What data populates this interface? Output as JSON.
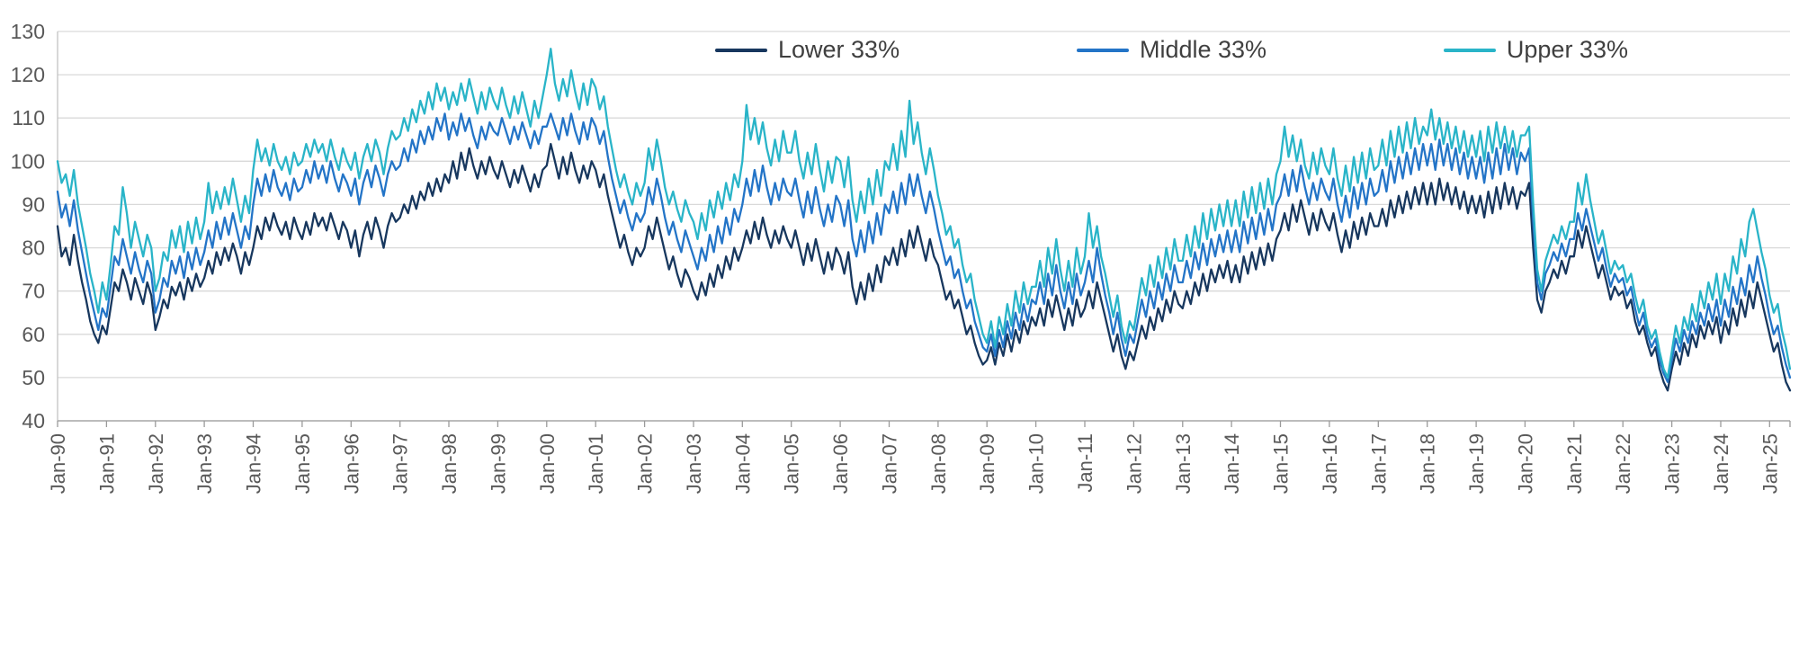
{
  "chart_data": {
    "type": "line",
    "title": "",
    "xlabel": "",
    "ylabel": "",
    "grid": true,
    "legend_position": "top",
    "ylim": [
      40,
      130
    ],
    "y_ticks": [
      40,
      50,
      60,
      70,
      80,
      90,
      100,
      110,
      120,
      130
    ],
    "x_unit": "monthly, Jan-1990 through Jun-2025",
    "x_tick_labels": [
      "Jan-90",
      "Jan-91",
      "Jan-92",
      "Jan-93",
      "Jan-94",
      "Jan-95",
      "Jan-96",
      "Jan-97",
      "Jan-98",
      "Jan-99",
      "Jan-00",
      "Jan-01",
      "Jan-02",
      "Jan-03",
      "Jan-04",
      "Jan-05",
      "Jan-06",
      "Jan-07",
      "Jan-08",
      "Jan-09",
      "Jan-10",
      "Jan-11",
      "Jan-12",
      "Jan-13",
      "Jan-14",
      "Jan-15",
      "Jan-16",
      "Jan-17",
      "Jan-18",
      "Jan-19",
      "Jan-20",
      "Jan-21",
      "Jan-22",
      "Jan-23",
      "Jan-24",
      "Jan-25"
    ],
    "axis_label_color": "#595959",
    "gridline_color": "#d9d9d9",
    "series": [
      {
        "name": "Lower 33%",
        "color": "#17375E",
        "values": [
          85,
          78,
          80,
          76,
          83,
          77,
          72,
          68,
          63,
          60,
          58,
          62,
          60,
          66,
          72,
          70,
          75,
          72,
          68,
          73,
          70,
          67,
          72,
          69,
          61,
          64,
          68,
          66,
          71,
          69,
          72,
          68,
          73,
          70,
          74,
          71,
          73,
          77,
          74,
          79,
          76,
          80,
          77,
          81,
          78,
          74,
          79,
          76,
          80,
          85,
          82,
          87,
          84,
          88,
          85,
          83,
          86,
          82,
          87,
          84,
          82,
          86,
          83,
          88,
          85,
          87,
          84,
          88,
          85,
          82,
          86,
          84,
          80,
          84,
          78,
          83,
          86,
          82,
          87,
          84,
          80,
          85,
          88,
          86,
          87,
          90,
          88,
          92,
          89,
          93,
          91,
          95,
          92,
          96,
          93,
          97,
          95,
          100,
          96,
          102,
          98,
          103,
          99,
          96,
          100,
          97,
          101,
          98,
          96,
          100,
          97,
          94,
          98,
          95,
          99,
          96,
          93,
          97,
          94,
          98,
          99,
          104,
          100,
          96,
          101,
          97,
          102,
          98,
          95,
          99,
          96,
          100,
          98,
          94,
          97,
          92,
          88,
          84,
          80,
          83,
          79,
          76,
          80,
          78,
          80,
          85,
          82,
          87,
          83,
          79,
          75,
          78,
          74,
          71,
          75,
          73,
          70,
          68,
          72,
          69,
          74,
          71,
          76,
          73,
          78,
          75,
          80,
          77,
          80,
          84,
          81,
          86,
          82,
          87,
          83,
          80,
          84,
          81,
          85,
          82,
          80,
          84,
          80,
          76,
          81,
          77,
          82,
          78,
          74,
          79,
          75,
          80,
          78,
          74,
          79,
          71,
          67,
          72,
          68,
          74,
          70,
          76,
          72,
          78,
          76,
          80,
          76,
          82,
          78,
          84,
          80,
          85,
          81,
          77,
          82,
          78,
          76,
          72,
          68,
          70,
          66,
          68,
          64,
          60,
          62,
          58,
          55,
          53,
          54,
          57,
          53,
          58,
          55,
          60,
          56,
          61,
          58,
          63,
          60,
          64,
          62,
          66,
          62,
          68,
          64,
          69,
          65,
          61,
          66,
          62,
          68,
          64,
          66,
          70,
          66,
          72,
          68,
          64,
          60,
          56,
          60,
          55,
          52,
          56,
          54,
          58,
          62,
          59,
          64,
          61,
          66,
          63,
          68,
          65,
          70,
          67,
          66,
          70,
          67,
          72,
          69,
          74,
          70,
          75,
          72,
          76,
          73,
          77,
          72,
          76,
          72,
          78,
          74,
          79,
          75,
          80,
          76,
          81,
          77,
          82,
          84,
          88,
          84,
          90,
          86,
          91,
          87,
          83,
          88,
          84,
          89,
          86,
          84,
          88,
          83,
          79,
          84,
          80,
          86,
          82,
          87,
          83,
          88,
          85,
          85,
          89,
          85,
          91,
          87,
          92,
          88,
          93,
          89,
          94,
          90,
          95,
          90,
          95,
          90,
          96,
          91,
          95,
          90,
          94,
          89,
          93,
          88,
          92,
          88,
          92,
          87,
          93,
          88,
          94,
          89,
          95,
          90,
          94,
          89,
          93,
          92,
          95,
          80,
          68,
          65,
          70,
          72,
          75,
          73,
          77,
          74,
          78,
          78,
          84,
          80,
          85,
          81,
          77,
          73,
          76,
          72,
          68,
          71,
          69,
          70,
          66,
          68,
          63,
          60,
          62,
          58,
          55,
          57,
          52,
          49,
          47,
          52,
          56,
          53,
          58,
          55,
          60,
          57,
          62,
          59,
          63,
          60,
          64,
          58,
          63,
          60,
          66,
          62,
          68,
          64,
          70,
          66,
          72,
          68,
          64,
          60,
          56,
          58,
          53,
          49,
          47
        ]
      },
      {
        "name": "Middle 33%",
        "color": "#2374C7",
        "values": [
          93,
          87,
          90,
          85,
          91,
          84,
          79,
          74,
          69,
          65,
          61,
          66,
          64,
          71,
          78,
          76,
          82,
          78,
          74,
          79,
          75,
          72,
          77,
          74,
          65,
          68,
          73,
          71,
          77,
          74,
          78,
          73,
          79,
          75,
          80,
          76,
          79,
          84,
          80,
          86,
          82,
          87,
          83,
          88,
          84,
          80,
          85,
          82,
          90,
          96,
          92,
          97,
          93,
          98,
          94,
          92,
          95,
          91,
          96,
          93,
          94,
          98,
          95,
          100,
          96,
          99,
          95,
          100,
          96,
          93,
          97,
          95,
          92,
          96,
          90,
          95,
          98,
          94,
          99,
          96,
          92,
          97,
          100,
          98,
          99,
          103,
          100,
          105,
          102,
          107,
          104,
          108,
          105,
          110,
          107,
          111,
          105,
          109,
          106,
          111,
          107,
          110,
          106,
          103,
          108,
          105,
          109,
          107,
          106,
          110,
          107,
          104,
          108,
          105,
          109,
          106,
          103,
          107,
          104,
          108,
          108,
          111,
          108,
          105,
          110,
          106,
          111,
          107,
          104,
          109,
          105,
          110,
          108,
          104,
          107,
          101,
          96,
          92,
          88,
          91,
          87,
          84,
          88,
          86,
          88,
          94,
          90,
          96,
          92,
          87,
          83,
          86,
          82,
          79,
          84,
          81,
          78,
          75,
          80,
          77,
          83,
          79,
          85,
          81,
          87,
          83,
          89,
          86,
          90,
          96,
          92,
          98,
          93,
          99,
          94,
          90,
          95,
          91,
          96,
          93,
          92,
          96,
          91,
          87,
          93,
          88,
          94,
          89,
          85,
          90,
          86,
          92,
          90,
          85,
          91,
          82,
          78,
          84,
          79,
          86,
          81,
          88,
          83,
          90,
          88,
          93,
          88,
          95,
          90,
          97,
          92,
          97,
          92,
          88,
          93,
          89,
          84,
          80,
          76,
          78,
          73,
          75,
          70,
          66,
          68,
          63,
          60,
          57,
          56,
          60,
          55,
          61,
          57,
          63,
          59,
          65,
          61,
          67,
          63,
          68,
          67,
          72,
          67,
          74,
          69,
          76,
          70,
          66,
          72,
          67,
          74,
          69,
          72,
          77,
          72,
          80,
          74,
          69,
          65,
          60,
          65,
          59,
          55,
          60,
          58,
          63,
          68,
          64,
          70,
          66,
          72,
          68,
          74,
          70,
          76,
          72,
          72,
          77,
          73,
          79,
          75,
          81,
          76,
          82,
          78,
          83,
          79,
          84,
          79,
          84,
          79,
          86,
          81,
          87,
          82,
          88,
          83,
          89,
          84,
          90,
          92,
          97,
          92,
          98,
          93,
          99,
          94,
          90,
          95,
          91,
          96,
          93,
          91,
          96,
          90,
          86,
          92,
          87,
          94,
          89,
          95,
          90,
          96,
          92,
          93,
          98,
          93,
          100,
          95,
          101,
          96,
          102,
          97,
          103,
          98,
          104,
          99,
          104,
          98,
          105,
          99,
          104,
          98,
          103,
          97,
          102,
          96,
          101,
          96,
          101,
          95,
          102,
          96,
          103,
          97,
          104,
          98,
          103,
          97,
          102,
          100,
          103,
          86,
          72,
          68,
          74,
          76,
          79,
          77,
          81,
          78,
          82,
          82,
          88,
          84,
          89,
          85,
          81,
          77,
          80,
          75,
          71,
          74,
          72,
          73,
          69,
          71,
          66,
          62,
          65,
          60,
          57,
          59,
          54,
          51,
          49,
          54,
          59,
          56,
          61,
          58,
          63,
          60,
          65,
          62,
          67,
          63,
          68,
          62,
          68,
          64,
          71,
          67,
          73,
          69,
          76,
          72,
          78,
          73,
          69,
          64,
          60,
          62,
          57,
          53,
          50
        ]
      },
      {
        "name": "Upper 33%",
        "color": "#29B4C8",
        "values": [
          100,
          95,
          97,
          92,
          98,
          90,
          85,
          80,
          74,
          70,
          65,
          72,
          68,
          76,
          85,
          83,
          94,
          88,
          80,
          86,
          82,
          78,
          83,
          80,
          70,
          73,
          79,
          77,
          84,
          80,
          85,
          79,
          86,
          81,
          87,
          82,
          86,
          95,
          88,
          93,
          89,
          94,
          90,
          96,
          91,
          86,
          92,
          88,
          98,
          105,
          100,
          103,
          99,
          104,
          100,
          98,
          101,
          97,
          102,
          99,
          100,
          104,
          101,
          105,
          102,
          104,
          100,
          105,
          101,
          98,
          103,
          100,
          98,
          102,
          96,
          101,
          104,
          100,
          105,
          102,
          97,
          103,
          107,
          105,
          106,
          110,
          107,
          112,
          109,
          114,
          111,
          116,
          112,
          118,
          114,
          117,
          112,
          116,
          113,
          118,
          114,
          119,
          115,
          111,
          116,
          112,
          117,
          114,
          112,
          117,
          113,
          110,
          115,
          111,
          116,
          112,
          108,
          114,
          110,
          115,
          120,
          126,
          118,
          114,
          119,
          115,
          121,
          116,
          112,
          118,
          113,
          119,
          117,
          112,
          115,
          108,
          103,
          98,
          94,
          97,
          93,
          90,
          95,
          92,
          95,
          103,
          98,
          105,
          100,
          94,
          90,
          93,
          89,
          86,
          91,
          88,
          86,
          82,
          88,
          84,
          91,
          87,
          93,
          89,
          95,
          91,
          97,
          94,
          100,
          113,
          105,
          110,
          104,
          109,
          103,
          99,
          105,
          100,
          107,
          102,
          102,
          107,
          100,
          96,
          102,
          97,
          104,
          98,
          93,
          100,
          95,
          101,
          100,
          94,
          101,
          91,
          86,
          93,
          88,
          96,
          90,
          98,
          92,
          100,
          98,
          104,
          98,
          107,
          101,
          114,
          104,
          109,
          102,
          97,
          103,
          98,
          92,
          88,
          83,
          85,
          80,
          82,
          76,
          72,
          74,
          68,
          64,
          60,
          58,
          63,
          57,
          64,
          60,
          67,
          62,
          70,
          65,
          72,
          67,
          71,
          71,
          77,
          71,
          80,
          74,
          82,
          75,
          70,
          77,
          71,
          80,
          74,
          78,
          88,
          80,
          85,
          78,
          74,
          69,
          64,
          69,
          62,
          58,
          63,
          61,
          67,
          73,
          69,
          76,
          71,
          78,
          73,
          80,
          75,
          82,
          77,
          77,
          83,
          78,
          85,
          80,
          88,
          82,
          89,
          84,
          90,
          85,
          91,
          85,
          91,
          85,
          93,
          87,
          94,
          88,
          95,
          89,
          96,
          90,
          97,
          100,
          108,
          101,
          106,
          100,
          105,
          99,
          96,
          102,
          97,
          103,
          99,
          97,
          103,
          96,
          92,
          99,
          93,
          101,
          95,
          102,
          96,
          103,
          98,
          99,
          105,
          99,
          107,
          101,
          108,
          102,
          109,
          103,
          110,
          104,
          108,
          106,
          112,
          105,
          110,
          104,
          109,
          103,
          108,
          102,
          107,
          101,
          106,
          101,
          107,
          100,
          108,
          102,
          109,
          103,
          108,
          102,
          107,
          101,
          106,
          106,
          108,
          90,
          75,
          70,
          77,
          80,
          83,
          81,
          85,
          82,
          86,
          86,
          95,
          90,
          97,
          91,
          86,
          81,
          84,
          79,
          74,
          77,
          75,
          76,
          72,
          74,
          69,
          65,
          68,
          62,
          59,
          61,
          56,
          52,
          50,
          56,
          62,
          58,
          64,
          61,
          67,
          63,
          70,
          66,
          72,
          68,
          74,
          67,
          74,
          70,
          78,
          74,
          82,
          78,
          86,
          89,
          84,
          79,
          75,
          69,
          65,
          67,
          61,
          57,
          52
        ]
      }
    ]
  }
}
